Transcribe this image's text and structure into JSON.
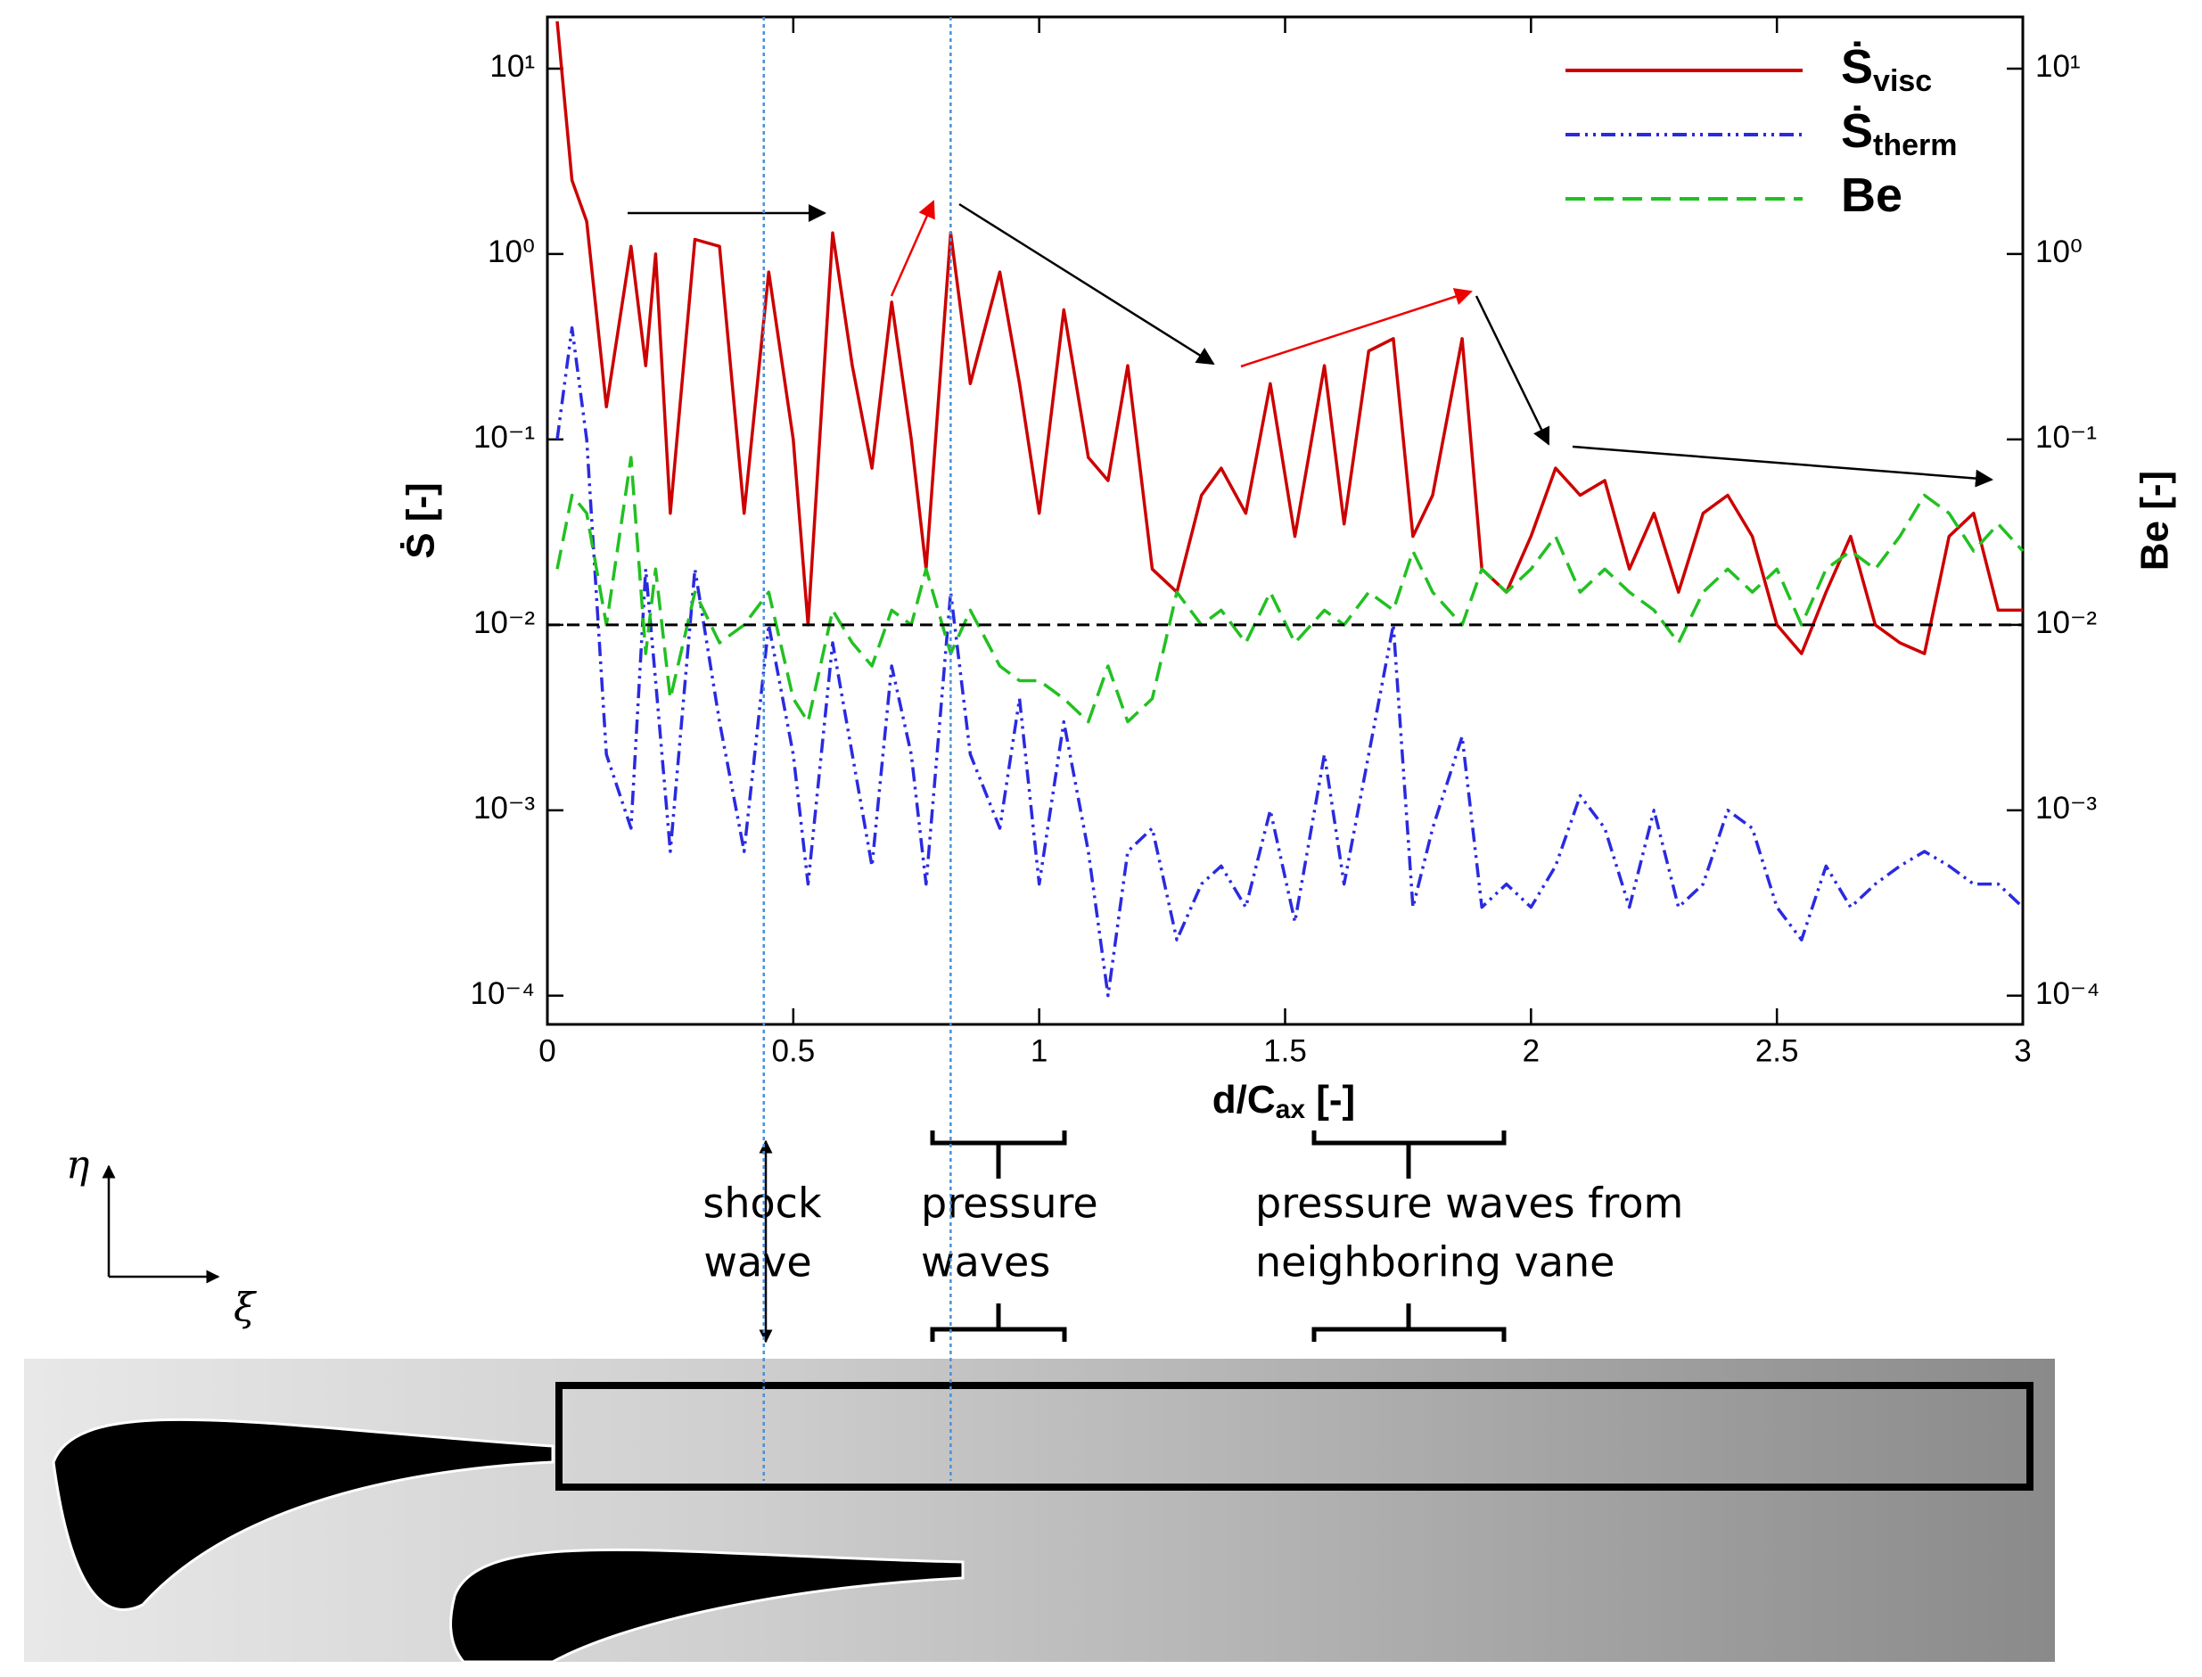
{
  "chart_data": {
    "type": "line",
    "y_label": "Ṡ [-]",
    "y2_label": "Be [-]",
    "x_label": {
      "main": "d/C",
      "sub": "ax",
      "unit": " [-]"
    },
    "log_y": true,
    "xlim": [
      0,
      3
    ],
    "xticks": [
      0,
      0.5,
      1,
      1.5,
      2,
      2.5,
      3
    ],
    "ylim": [
      7e-05,
      19
    ],
    "yticks": [
      {
        "value": 10,
        "label": "10¹"
      },
      {
        "value": 1,
        "label": "10⁰"
      },
      {
        "value": 0.1,
        "label": "10⁻¹"
      },
      {
        "value": 0.01,
        "label": "10⁻²"
      },
      {
        "value": 0.001,
        "label": "10⁻³"
      },
      {
        "value": 0.0001,
        "label": "10⁻⁴"
      }
    ],
    "y2lim": [
      7e-05,
      19
    ],
    "y2ticks": [
      {
        "value": 10,
        "label": "10¹"
      },
      {
        "value": 1,
        "label": "10⁰"
      },
      {
        "value": 0.1,
        "label": "10⁻¹"
      },
      {
        "value": 0.01,
        "label": "10⁻²"
      },
      {
        "value": 0.001,
        "label": "10⁻³"
      },
      {
        "value": 0.0001,
        "label": "10⁻⁴"
      }
    ],
    "reference_line": 0.01,
    "vlines": [
      0.44,
      0.82
    ],
    "legend": "top-right",
    "x": [
      0.02,
      0.05,
      0.08,
      0.12,
      0.17,
      0.2,
      0.22,
      0.25,
      0.3,
      0.35,
      0.4,
      0.45,
      0.5,
      0.53,
      0.58,
      0.62,
      0.66,
      0.7,
      0.74,
      0.77,
      0.82,
      0.86,
      0.92,
      0.96,
      1.0,
      1.05,
      1.1,
      1.14,
      1.18,
      1.23,
      1.28,
      1.33,
      1.37,
      1.42,
      1.47,
      1.52,
      1.58,
      1.62,
      1.67,
      1.72,
      1.76,
      1.8,
      1.86,
      1.9,
      1.95,
      2.0,
      2.05,
      2.1,
      2.15,
      2.2,
      2.25,
      2.3,
      2.35,
      2.4,
      2.45,
      2.5,
      2.55,
      2.6,
      2.65,
      2.7,
      2.75,
      2.8,
      2.85,
      2.9,
      2.95,
      3.0
    ],
    "series": [
      {
        "name": "Ṡ",
        "name_sub": "visc",
        "color": "#cc0000",
        "dash": "solid",
        "values": [
          18,
          2.5,
          1.5,
          0.15,
          1.1,
          0.25,
          1.0,
          0.04,
          1.2,
          1.1,
          0.04,
          0.8,
          0.1,
          0.01,
          1.3,
          0.25,
          0.07,
          0.55,
          0.1,
          0.02,
          1.3,
          0.2,
          0.8,
          0.2,
          0.04,
          0.5,
          0.08,
          0.06,
          0.25,
          0.02,
          0.015,
          0.05,
          0.07,
          0.04,
          0.2,
          0.03,
          0.25,
          0.035,
          0.3,
          0.35,
          0.03,
          0.05,
          0.35,
          0.02,
          0.015,
          0.03,
          0.07,
          0.05,
          0.06,
          0.02,
          0.04,
          0.015,
          0.04,
          0.05,
          0.03,
          0.01,
          0.007,
          0.015,
          0.03,
          0.01,
          0.008,
          0.007,
          0.03,
          0.04,
          0.012,
          0.012
        ]
      },
      {
        "name": "Ṡ",
        "name_sub": "therm",
        "color": "#2a2ae0",
        "dash": "dashdotdot",
        "values": [
          0.1,
          0.4,
          0.1,
          0.002,
          0.0008,
          0.02,
          0.005,
          0.0006,
          0.02,
          0.003,
          0.0006,
          0.01,
          0.002,
          0.0004,
          0.008,
          0.002,
          0.0005,
          0.006,
          0.002,
          0.0004,
          0.015,
          0.002,
          0.0008,
          0.004,
          0.0004,
          0.003,
          0.0006,
          0.0001,
          0.0006,
          0.0008,
          0.0002,
          0.0004,
          0.0005,
          0.0003,
          0.001,
          0.00025,
          0.002,
          0.0004,
          0.002,
          0.01,
          0.0003,
          0.0008,
          0.0025,
          0.0003,
          0.0004,
          0.0003,
          0.0005,
          0.0012,
          0.0008,
          0.0003,
          0.001,
          0.0003,
          0.0004,
          0.001,
          0.0008,
          0.0003,
          0.0002,
          0.0005,
          0.0003,
          0.0004,
          0.0005,
          0.0006,
          0.0005,
          0.0004,
          0.0004,
          0.0003
        ]
      },
      {
        "name": "Be",
        "color": "#22c022",
        "dash": "dashed",
        "axis": "y2",
        "values": [
          0.02,
          0.05,
          0.04,
          0.01,
          0.08,
          0.007,
          0.02,
          0.004,
          0.015,
          0.008,
          0.01,
          0.015,
          0.004,
          0.003,
          0.012,
          0.008,
          0.006,
          0.012,
          0.01,
          0.02,
          0.007,
          0.012,
          0.006,
          0.005,
          0.005,
          0.004,
          0.003,
          0.006,
          0.003,
          0.004,
          0.015,
          0.01,
          0.012,
          0.008,
          0.015,
          0.008,
          0.012,
          0.01,
          0.015,
          0.012,
          0.025,
          0.015,
          0.01,
          0.02,
          0.015,
          0.02,
          0.03,
          0.015,
          0.02,
          0.015,
          0.012,
          0.008,
          0.015,
          0.02,
          0.015,
          0.02,
          0.01,
          0.02,
          0.025,
          0.02,
          0.03,
          0.05,
          0.04,
          0.025,
          0.035,
          0.025
        ]
      }
    ]
  },
  "annotations": {
    "shock": [
      "shock",
      "wave"
    ],
    "pressure": [
      "pressure",
      "waves"
    ],
    "neighbor": [
      "pressure waves from",
      "neighboring vane"
    ],
    "eta": "η",
    "xi": "ξ"
  }
}
